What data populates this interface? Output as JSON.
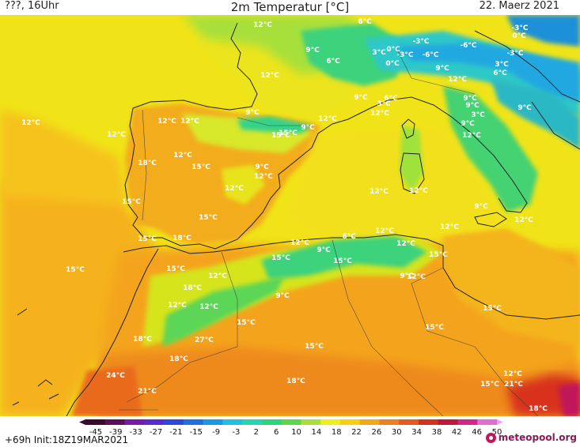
{
  "header": {
    "left": "???, 16Uhr",
    "title": "2m Temperatur [°C]",
    "right": "22. Maerz 2021"
  },
  "footer": {
    "run": "+69h  Init:18Z19MAR2021",
    "logo": "meteopool.org"
  },
  "legend": {
    "ticks": [
      "-45",
      "-39",
      "-33",
      "-27",
      "-21",
      "-15",
      "-9",
      "-3",
      "2",
      "6",
      "10",
      "14",
      "18",
      "22",
      "26",
      "30",
      "34",
      "38",
      "42",
      "46",
      "50"
    ],
    "colors": [
      "#3a0a2e",
      "#5a0f5a",
      "#7a1aa8",
      "#5a2ad0",
      "#3048d8",
      "#2070e0",
      "#1a98e8",
      "#22c0e0",
      "#26d6b0",
      "#2ed47a",
      "#5ad84a",
      "#a8e03a",
      "#f0f018",
      "#f8d010",
      "#f4a818",
      "#ef8020",
      "#e65a1e",
      "#d4321e",
      "#c0183a",
      "#d0288a",
      "#e070d0"
    ]
  },
  "map": {
    "labels": [
      {
        "t": "12°C",
        "id": "l1"
      },
      {
        "t": "6°C",
        "id": "l2"
      },
      {
        "t": "9°C",
        "id": "l3"
      },
      {
        "t": "6°C",
        "id": "l4"
      },
      {
        "t": "12°C",
        "id": "l5"
      },
      {
        "t": "-3°C",
        "id": "l6"
      },
      {
        "t": "-6°C",
        "id": "l7"
      },
      {
        "t": "-3°C",
        "id": "l8"
      },
      {
        "t": "0°C",
        "id": "l9"
      },
      {
        "t": "0°C",
        "id": "l10"
      },
      {
        "t": "3°C",
        "id": "l11"
      },
      {
        "t": "-6°C",
        "id": "l12"
      },
      {
        "t": "-3°C",
        "id": "l13"
      },
      {
        "t": "0°C",
        "id": "l14"
      },
      {
        "t": "-3°C",
        "id": "l15"
      },
      {
        "t": "3°C",
        "id": "l16"
      },
      {
        "t": "6°C",
        "id": "l17"
      },
      {
        "t": "9°C",
        "id": "l18"
      },
      {
        "t": "12°C",
        "id": "l19"
      },
      {
        "t": "9°C",
        "id": "l20"
      },
      {
        "t": "6°C",
        "id": "l21"
      },
      {
        "t": "3°C",
        "id": "l22"
      },
      {
        "t": "9°C",
        "id": "l23"
      },
      {
        "t": "9°C",
        "id": "l24"
      },
      {
        "t": "12°C",
        "id": "l25"
      },
      {
        "t": "9°C",
        "id": "l26"
      },
      {
        "t": "9°C",
        "id": "l27"
      },
      {
        "t": "12°C",
        "id": "l28"
      },
      {
        "t": "12°C",
        "id": "l29"
      },
      {
        "t": "12°C",
        "id": "l30"
      },
      {
        "t": "15°C",
        "id": "l31"
      },
      {
        "t": "12°C",
        "id": "l32"
      },
      {
        "t": "9°C",
        "id": "l33"
      },
      {
        "t": "3°C",
        "id": "l34"
      },
      {
        "t": "12°C",
        "id": "l35"
      },
      {
        "t": "15°C",
        "id": "l36"
      },
      {
        "t": "9°C",
        "id": "l37"
      },
      {
        "t": "12°C",
        "id": "l38"
      },
      {
        "t": "18°C",
        "id": "l39"
      },
      {
        "t": "12°C",
        "id": "l40"
      },
      {
        "t": "15°C",
        "id": "l41"
      },
      {
        "t": "9°C",
        "id": "l42"
      },
      {
        "t": "12°C",
        "id": "l43"
      },
      {
        "t": "15°C",
        "id": "l44"
      },
      {
        "t": "12°C",
        "id": "l45"
      },
      {
        "t": "12°C",
        "id": "l46"
      },
      {
        "t": "12°C",
        "id": "l47"
      },
      {
        "t": "15°C",
        "id": "l48"
      },
      {
        "t": "12°C",
        "id": "l49"
      },
      {
        "t": "9°C",
        "id": "l50"
      },
      {
        "t": "15°C",
        "id": "l51"
      },
      {
        "t": "18°C",
        "id": "l52"
      },
      {
        "t": "15°C",
        "id": "l53"
      },
      {
        "t": "12°C",
        "id": "l54"
      },
      {
        "t": "6°C",
        "id": "l55"
      },
      {
        "t": "12°C",
        "id": "l56"
      },
      {
        "t": "12°C",
        "id": "l57"
      },
      {
        "t": "9°C",
        "id": "l58"
      },
      {
        "t": "15°C",
        "id": "l59"
      },
      {
        "t": "12°C",
        "id": "l60"
      },
      {
        "t": "15°C",
        "id": "l61"
      },
      {
        "t": "15°C",
        "id": "l62"
      },
      {
        "t": "15°C",
        "id": "l63"
      },
      {
        "t": "9°C",
        "id": "l64"
      },
      {
        "t": "18°C",
        "id": "l65"
      },
      {
        "t": "12°C",
        "id": "l66"
      },
      {
        "t": "12°C",
        "id": "l67"
      },
      {
        "t": "12°C",
        "id": "l68"
      },
      {
        "t": "12°C",
        "id": "l69"
      },
      {
        "t": "9°C",
        "id": "l70"
      },
      {
        "t": "15°C",
        "id": "l71"
      },
      {
        "t": "15°C",
        "id": "l72"
      },
      {
        "t": "15°C",
        "id": "l73"
      },
      {
        "t": "18°C",
        "id": "l74"
      },
      {
        "t": "18°C",
        "id": "l75"
      },
      {
        "t": "24°C",
        "id": "l76"
      },
      {
        "t": "18°C",
        "id": "l77"
      },
      {
        "t": "21°C",
        "id": "l78"
      },
      {
        "t": "15°C",
        "id": "l79"
      },
      {
        "t": "12°C",
        "id": "l80"
      },
      {
        "t": "15°C",
        "id": "l81"
      },
      {
        "t": "21°C",
        "id": "l82"
      },
      {
        "t": "18°C",
        "id": "l83"
      },
      {
        "t": "27°C",
        "id": "l84"
      }
    ]
  }
}
